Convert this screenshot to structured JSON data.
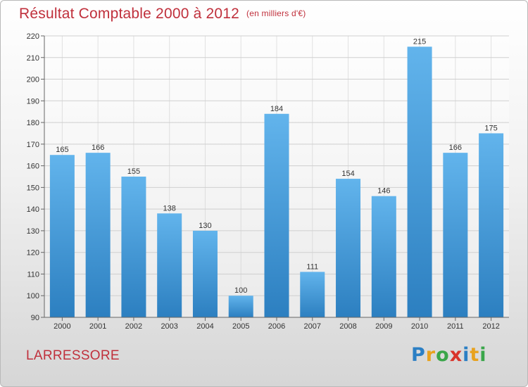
{
  "header": {
    "title": "Résultat Comptable 2000 à 2012",
    "unit": "(en milliers d'€)"
  },
  "footer": {
    "city": "LARRESSORE",
    "logo_text": "Proxiti",
    "logo_colors": [
      "#2b7fc4",
      "#e8a21e",
      "#3aa64a",
      "#d9342b",
      "#2b7fc4",
      "#e8a21e",
      "#3aa64a"
    ]
  },
  "chart_data": {
    "type": "bar",
    "categories": [
      "2000",
      "2001",
      "2002",
      "2003",
      "2004",
      "2005",
      "2006",
      "2007",
      "2008",
      "2009",
      "2010",
      "2011",
      "2012"
    ],
    "values": [
      165,
      166,
      155,
      138,
      130,
      100,
      184,
      111,
      154,
      146,
      215,
      166,
      175
    ],
    "ylim": [
      90,
      220
    ],
    "yticks": [
      90,
      100,
      110,
      120,
      130,
      140,
      150,
      160,
      170,
      180,
      190,
      200,
      210,
      220
    ],
    "grid": true,
    "data_labels": true,
    "bar_color_top": "#62b4ec",
    "bar_color_bottom": "#2c7fc0",
    "grid_color": "#cfcfcf",
    "text_color": "#333333"
  }
}
